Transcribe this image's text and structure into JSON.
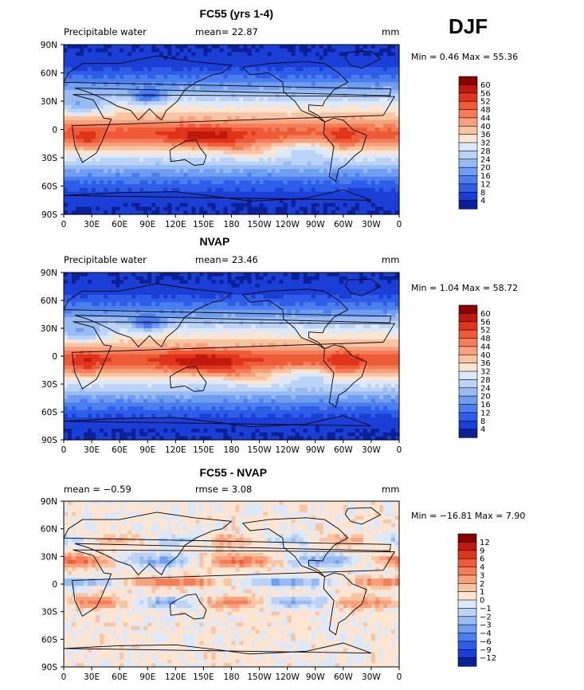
{
  "season_label": "DJF",
  "chart_data": [
    {
      "type": "heatmap",
      "title": "FC55 (yrs 1-4)",
      "left_label": "Precipitable water",
      "center_label": "mean=  22.87",
      "units": "mm",
      "minmax": "Min =   0.46 Max =  55.36",
      "x_ticks": [
        "0",
        "30E",
        "60E",
        "90E",
        "120E",
        "150E",
        "180",
        "150W",
        "120W",
        "90W",
        "60W",
        "30W",
        "0"
      ],
      "y_ticks": [
        "90N",
        "60N",
        "30N",
        "0",
        "30S",
        "60S",
        "90S"
      ],
      "colorbar_levels": [
        "60",
        "56",
        "52",
        "48",
        "44",
        "40",
        "36",
        "32",
        "28",
        "24",
        "20",
        "16",
        "12",
        "8",
        "4"
      ],
      "colorbar_colors": [
        "#8b0000",
        "#c0180c",
        "#e0351c",
        "#ef5a37",
        "#f47e58",
        "#f7a17d",
        "#f9c4a2",
        "#fce6d2",
        "#dbe9fb",
        "#bad3f7",
        "#97bbf2",
        "#6f9ef0",
        "#4b7fee",
        "#2e5ee9",
        "#1a3fd6",
        "#0b1f96"
      ],
      "mean": 22.87,
      "min": 0.46,
      "max": 55.36
    },
    {
      "type": "heatmap",
      "title": "NVAP",
      "left_label": "Precipitable water",
      "center_label": "mean=  23.46",
      "units": "mm",
      "minmax": "Min =   1.04 Max =  58.72",
      "x_ticks": [
        "0",
        "30E",
        "60E",
        "90E",
        "120E",
        "150E",
        "180",
        "150W",
        "120W",
        "90W",
        "60W",
        "30W",
        "0"
      ],
      "y_ticks": [
        "90N",
        "60N",
        "30N",
        "0",
        "30S",
        "60S",
        "90S"
      ],
      "colorbar_levels": [
        "60",
        "56",
        "52",
        "48",
        "44",
        "40",
        "36",
        "32",
        "28",
        "24",
        "20",
        "16",
        "12",
        "8",
        "4"
      ],
      "colorbar_colors": [
        "#8b0000",
        "#c0180c",
        "#e0351c",
        "#ef5a37",
        "#f47e58",
        "#f7a17d",
        "#f9c4a2",
        "#fce6d2",
        "#dbe9fb",
        "#bad3f7",
        "#97bbf2",
        "#6f9ef0",
        "#4b7fee",
        "#2e5ee9",
        "#1a3fd6",
        "#0b1f96"
      ],
      "mean": 23.46,
      "min": 1.04,
      "max": 58.72
    },
    {
      "type": "heatmap",
      "title": "FC55 - NVAP",
      "left_label": "mean =   −0.59",
      "center_label": "rmse =    3.08",
      "units": "mm",
      "minmax": "Min = −16.81 Max =    7.90",
      "x_ticks": [
        "0",
        "30E",
        "60E",
        "90E",
        "120E",
        "150E",
        "180",
        "150W",
        "120W",
        "90W",
        "60W",
        "30W",
        "0"
      ],
      "y_ticks": [
        "90N",
        "60N",
        "30N",
        "0",
        "30S",
        "60S",
        "90S"
      ],
      "colorbar_levels": [
        "12",
        "9",
        "6",
        "4",
        "3",
        "2",
        "1",
        "0",
        "−1",
        "−2",
        "−3",
        "−4",
        "−6",
        "−9",
        "−12"
      ],
      "colorbar_colors": [
        "#8b0000",
        "#c0180c",
        "#e0351c",
        "#ef5a37",
        "#f47e58",
        "#f7a17d",
        "#f9c4a2",
        "#fce6d2",
        "#dbe9fb",
        "#bad3f7",
        "#97bbf2",
        "#6f9ef0",
        "#4b7fee",
        "#2e5ee9",
        "#1a3fd6",
        "#0b1f96"
      ],
      "mean": -0.59,
      "rmse": 3.08,
      "min": -16.81,
      "max": 7.9
    }
  ]
}
